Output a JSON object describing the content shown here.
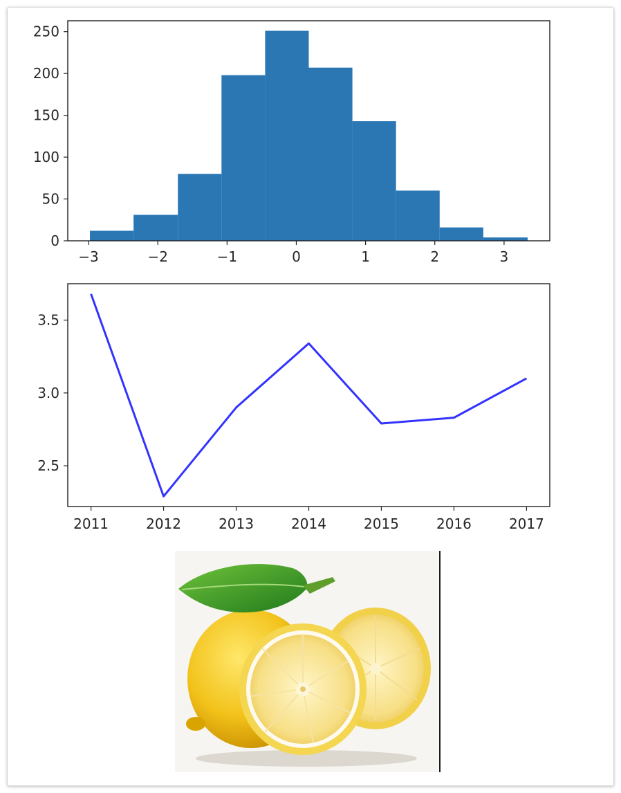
{
  "chart_data": [
    {
      "type": "bar",
      "subtype": "histogram",
      "color": "#2a77b4",
      "bins": [
        {
          "x0": -2.98,
          "x1": -2.35,
          "count": 12
        },
        {
          "x0": -2.35,
          "x1": -1.71,
          "count": 31
        },
        {
          "x0": -1.71,
          "x1": -1.08,
          "count": 80
        },
        {
          "x0": -1.08,
          "x1": -0.45,
          "count": 198
        },
        {
          "x0": -0.45,
          "x1": 0.18,
          "count": 251
        },
        {
          "x0": 0.18,
          "x1": 0.81,
          "count": 207
        },
        {
          "x0": 0.81,
          "x1": 1.44,
          "count": 143
        },
        {
          "x0": 1.44,
          "x1": 2.07,
          "count": 60
        },
        {
          "x0": 2.07,
          "x1": 2.7,
          "count": 16
        },
        {
          "x0": 2.7,
          "x1": 3.34,
          "count": 4
        }
      ],
      "xlim": [
        -3.3,
        3.66
      ],
      "ylim": [
        0,
        263
      ],
      "xticks": [
        -3,
        -2,
        -1,
        0,
        1,
        2,
        3
      ],
      "xtick_labels": [
        "−3",
        "−2",
        "−1",
        "0",
        "1",
        "2",
        "3"
      ],
      "yticks": [
        0,
        50,
        100,
        150,
        200,
        250
      ],
      "ytick_labels": [
        "0",
        "50",
        "100",
        "150",
        "200",
        "250"
      ]
    },
    {
      "type": "line",
      "color": "#3333ff",
      "x": [
        2011,
        2012,
        2013,
        2014,
        2015,
        2016,
        2017
      ],
      "y": [
        3.68,
        2.29,
        2.9,
        3.34,
        2.79,
        2.83,
        3.1
      ],
      "xlim": [
        2010.68,
        2017.32
      ],
      "ylim": [
        2.22,
        3.75
      ],
      "xticks": [
        2011,
        2012,
        2013,
        2014,
        2015,
        2016,
        2017
      ],
      "xtick_labels": [
        "2011",
        "2012",
        "2013",
        "2014",
        "2015",
        "2016",
        "2017"
      ],
      "yticks": [
        2.5,
        3.0,
        3.5
      ],
      "ytick_labels": [
        "2.5",
        "3.0",
        "3.5"
      ]
    }
  ],
  "image": {
    "subject": "lemon-photo"
  }
}
